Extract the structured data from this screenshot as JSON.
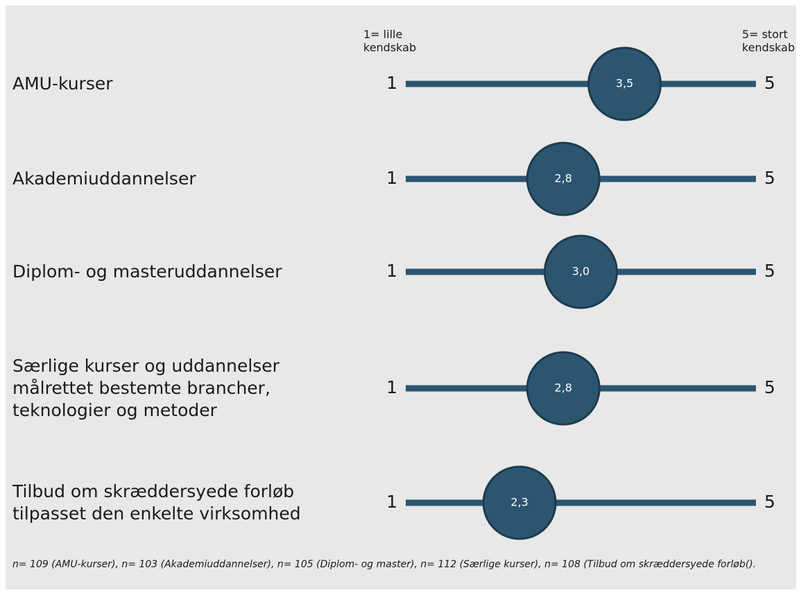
{
  "chart_data": {
    "type": "dot",
    "categories": [
      "AMU-kurser",
      "Akademiuddannelser",
      "Diplom- og masteruddannelser",
      "Særlige kurser og uddannelser\nmålrettet bestemte brancher,\nteknologier og metoder",
      "Tilbud om skræddersyede forløb\ntilpasset den enkelte virksomhed"
    ],
    "values": [
      3.5,
      2.8,
      3.0,
      2.8,
      2.3
    ],
    "value_labels": [
      "3,5",
      "2,8",
      "3,0",
      "2,8",
      "2,3"
    ],
    "xlim": [
      1,
      5
    ],
    "xticks": [
      1,
      5
    ],
    "color": "#2c5570",
    "annotations": [
      "1= lille\nkendskab",
      "5= stort\nkendskab"
    ],
    "note": "n= 109 (AMU-kurser), n= 103 (Akademiuddannelser), n= 105 (Diplom- og master), n= 112 (Særlige kurser), n= 108 (Tilbud om skræddersyede forløb()."
  }
}
